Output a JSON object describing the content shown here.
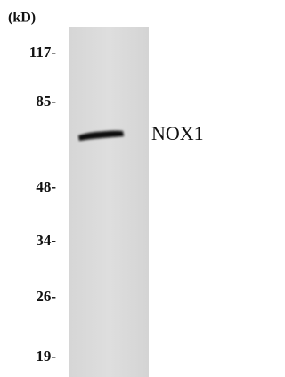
{
  "unit_label": "(kD)",
  "markers": [
    "117-",
    "85-",
    "48-",
    "34-",
    "26-",
    "19-"
  ],
  "band_label": "NOX1"
}
